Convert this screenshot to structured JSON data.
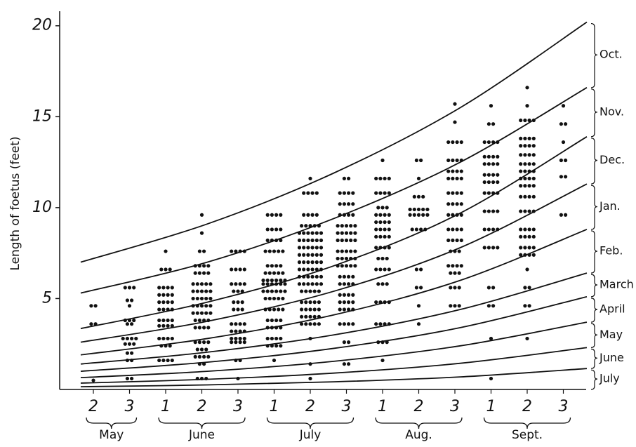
{
  "chart_data": {
    "type": "scatter",
    "y_label": "Length of foetus (feet)",
    "ylim": [
      0,
      20.8
    ],
    "yticks": [
      5,
      10,
      15,
      20
    ],
    "categories": [
      "2",
      "3",
      "1",
      "2",
      "3",
      "1",
      "2",
      "3",
      "1",
      "2",
      "3",
      "1",
      "2",
      "3"
    ],
    "groups": [
      {
        "label": "May",
        "count": 2
      },
      {
        "label": "June",
        "count": 3
      },
      {
        "label": "July",
        "count": 3
      },
      {
        "label": "Aug.",
        "count": 3
      },
      {
        "label": "Sept.",
        "count": 3
      }
    ],
    "columns": [
      {
        "values": [
          4.6,
          3.6,
          0.5
        ],
        "counts": [
          2,
          2,
          1
        ]
      },
      {
        "values": [
          5.6,
          4.9,
          4.6,
          3.8,
          3.6,
          2.8,
          2.5,
          2.0,
          1.6,
          0.6
        ],
        "counts": [
          3,
          2,
          1,
          3,
          2,
          4,
          3,
          2,
          2,
          2
        ]
      },
      {
        "values": [
          7.6,
          6.6,
          5.6,
          5.2,
          4.8,
          4.4,
          3.8,
          3.5,
          2.8,
          2.4,
          1.6
        ],
        "counts": [
          1,
          3,
          4,
          4,
          4,
          4,
          4,
          4,
          4,
          3,
          4
        ]
      },
      {
        "values": [
          9.6,
          8.6,
          7.6,
          6.8,
          6.4,
          5.8,
          5.4,
          5.0,
          4.6,
          4.2,
          3.8,
          3.4,
          2.6,
          2.2,
          1.8,
          1.4,
          0.6
        ],
        "counts": [
          1,
          1,
          2,
          4,
          4,
          5,
          5,
          5,
          5,
          5,
          4,
          4,
          4,
          3,
          4,
          2,
          3
        ]
      },
      {
        "values": [
          7.6,
          6.6,
          5.8,
          5.4,
          4.8,
          4.4,
          3.6,
          3.2,
          2.8,
          2.6,
          1.6,
          0.6
        ],
        "counts": [
          4,
          4,
          4,
          3,
          3,
          3,
          4,
          4,
          4,
          4,
          2,
          1
        ]
      },
      {
        "values": [
          9.6,
          8.8,
          8.2,
          7.6,
          6.8,
          6.4,
          6.0,
          5.8,
          5.4,
          5.0,
          4.4,
          3.8,
          3.4,
          2.8,
          2.4,
          1.6
        ],
        "counts": [
          4,
          4,
          4,
          5,
          4,
          5,
          6,
          6,
          6,
          5,
          5,
          4,
          4,
          4,
          4,
          1
        ]
      },
      {
        "values": [
          11.6,
          10.8,
          9.6,
          9.0,
          8.6,
          8.2,
          7.8,
          7.4,
          7.0,
          6.6,
          6.2,
          5.8,
          5.4,
          4.8,
          4.4,
          4.0,
          3.6,
          2.8,
          1.4,
          0.6
        ],
        "counts": [
          1,
          4,
          4,
          5,
          6,
          6,
          6,
          6,
          6,
          6,
          6,
          6,
          5,
          5,
          5,
          5,
          5,
          1,
          1,
          1
        ]
      },
      {
        "values": [
          11.6,
          10.8,
          10.2,
          9.6,
          9.0,
          8.6,
          8.2,
          7.6,
          7.2,
          6.8,
          6.2,
          5.8,
          5.2,
          4.8,
          4.4,
          3.6,
          2.6,
          1.4
        ],
        "counts": [
          2,
          4,
          4,
          4,
          5,
          5,
          5,
          5,
          5,
          5,
          4,
          4,
          4,
          4,
          4,
          4,
          2,
          2
        ]
      },
      {
        "values": [
          12.6,
          11.6,
          10.8,
          10.0,
          9.6,
          9.2,
          8.8,
          8.4,
          7.8,
          7.2,
          6.6,
          5.8,
          4.8,
          3.6,
          2.6,
          1.6
        ],
        "counts": [
          1,
          4,
          4,
          3,
          4,
          4,
          4,
          4,
          4,
          3,
          4,
          3,
          4,
          4,
          3,
          1
        ]
      },
      {
        "values": [
          12.6,
          11.6,
          10.6,
          9.9,
          9.6,
          8.8,
          6.6,
          5.6,
          4.6,
          3.6
        ],
        "counts": [
          2,
          1,
          3,
          5,
          5,
          4,
          2,
          2,
          1,
          1
        ]
      },
      {
        "values": [
          15.7,
          14.7,
          13.6,
          12.6,
          12.0,
          11.6,
          10.8,
          10.2,
          9.6,
          8.8,
          8.2,
          7.6,
          6.8,
          6.4,
          5.6,
          4.6
        ],
        "counts": [
          1,
          1,
          4,
          4,
          4,
          4,
          4,
          4,
          4,
          4,
          4,
          3,
          4,
          3,
          3,
          3
        ]
      },
      {
        "values": [
          15.6,
          14.6,
          13.6,
          12.8,
          12.4,
          11.8,
          11.4,
          10.8,
          9.8,
          8.8,
          7.8,
          5.6,
          4.6,
          2.8,
          0.6
        ],
        "counts": [
          1,
          2,
          4,
          4,
          4,
          4,
          4,
          4,
          4,
          4,
          4,
          2,
          2,
          1,
          1
        ]
      },
      {
        "values": [
          16.6,
          15.6,
          14.8,
          13.8,
          13.4,
          12.9,
          12.4,
          12.0,
          11.6,
          11.2,
          10.6,
          9.8,
          8.8,
          8.4,
          7.8,
          7.4,
          6.6,
          5.6,
          4.6,
          2.8
        ],
        "counts": [
          1,
          1,
          4,
          4,
          4,
          4,
          4,
          4,
          4,
          4,
          4,
          4,
          4,
          4,
          4,
          4,
          1,
          2,
          2,
          1
        ]
      },
      {
        "values": [
          15.6,
          14.6,
          13.6,
          12.6,
          11.7,
          9.6
        ],
        "counts": [
          1,
          2,
          1,
          2,
          2,
          2
        ]
      }
    ],
    "curve_x": [
      -0.35,
      3.15,
      6.65,
      10.15,
      13.65
    ],
    "curves": [
      {
        "name": "Oct.",
        "values": [
          7.0,
          9.1,
          11.9,
          15.5,
          20.2
        ]
      },
      {
        "name": "Nov.",
        "values": [
          5.3,
          7.0,
          9.4,
          12.5,
          16.6
        ]
      },
      {
        "name": "Dec.",
        "values": [
          3.35,
          4.8,
          6.8,
          9.7,
          13.9
        ]
      },
      {
        "name": "Jan.",
        "values": [
          2.6,
          3.75,
          5.4,
          7.8,
          11.3
        ]
      },
      {
        "name": "Feb.",
        "values": [
          1.9,
          2.8,
          4.1,
          6.0,
          8.8
        ]
      },
      {
        "name": "March",
        "values": [
          1.4,
          2.05,
          3.0,
          4.4,
          6.4
        ]
      },
      {
        "name": "April",
        "values": [
          1.0,
          1.5,
          2.26,
          3.4,
          5.1
        ]
      },
      {
        "name": "May",
        "values": [
          0.65,
          1.0,
          1.55,
          2.4,
          3.7
        ]
      },
      {
        "name": "June",
        "values": [
          0.35,
          0.56,
          0.9,
          1.44,
          2.3
        ]
      },
      {
        "name": "July",
        "values": [
          0.15,
          0.25,
          0.42,
          0.69,
          1.15
        ]
      }
    ],
    "color": "#111111"
  }
}
